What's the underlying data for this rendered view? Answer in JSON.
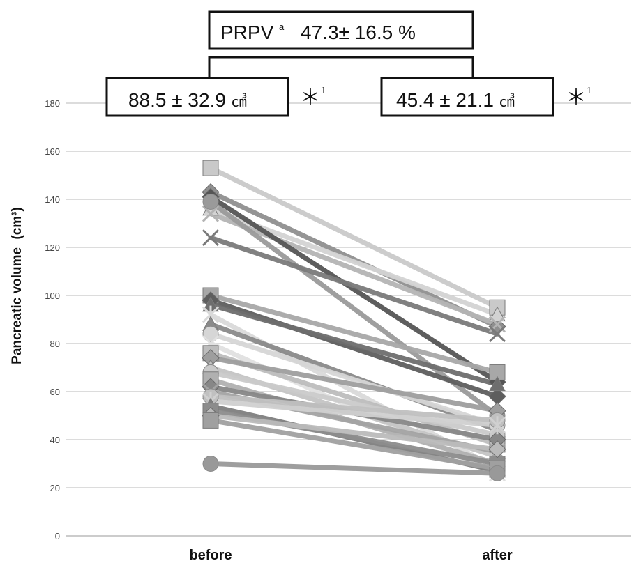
{
  "chart_data": {
    "type": "line",
    "categories": [
      "before",
      "after"
    ],
    "ylabel": "Pancreatic volume",
    "ylabel_unit": "(cm³)",
    "ylim": [
      0,
      180
    ],
    "yticks": [
      0,
      20,
      40,
      60,
      80,
      100,
      120,
      140,
      160,
      180
    ],
    "grid": true,
    "annotations": {
      "prpv": {
        "label": "PRPV",
        "superscript": "a",
        "value": "47.3± 16.5 %"
      },
      "before_box": {
        "value": "88.5 ± 32.9",
        "unit": "㎤",
        "marker": "＊",
        "superscript": "1"
      },
      "after_box": {
        "value": "45.4 ± 21.1",
        "unit": "㎤",
        "marker": "＊",
        "superscript": "1"
      }
    },
    "series": [
      {
        "values": [
          153,
          95
        ],
        "color": "#c9c9c9",
        "marker": "square"
      },
      {
        "values": [
          143,
          87
        ],
        "color": "#8f8f8f",
        "marker": "diamond"
      },
      {
        "values": [
          136,
          92
        ],
        "color": "#d3d3d3",
        "marker": "triangle"
      },
      {
        "values": [
          134,
          88
        ],
        "color": "#b4b4b4",
        "marker": "x"
      },
      {
        "values": [
          141,
          64
        ],
        "color": "#555555",
        "marker": "diamond"
      },
      {
        "values": [
          139,
          50
        ],
        "color": "#9a9a9a",
        "marker": "circle"
      },
      {
        "values": [
          124,
          84
        ],
        "color": "#7a7a7a",
        "marker": "x"
      },
      {
        "values": [
          100,
          68
        ],
        "color": "#a8a8a8",
        "marker": "square"
      },
      {
        "values": [
          98,
          58
        ],
        "color": "#5e5e5e",
        "marker": "diamond"
      },
      {
        "values": [
          96,
          63
        ],
        "color": "#6e6e6e",
        "marker": "triangle"
      },
      {
        "values": [
          92,
          28
        ],
        "color": "#d9d9d9",
        "marker": "star"
      },
      {
        "values": [
          88,
          44
        ],
        "color": "#8a8a8a",
        "marker": "triangle"
      },
      {
        "values": [
          84,
          46
        ],
        "color": "#d6d6d6",
        "marker": "circle"
      },
      {
        "values": [
          80,
          26
        ],
        "color": "#e0e0e0",
        "marker": "x"
      },
      {
        "values": [
          76,
          38
        ],
        "color": "#bdbdbd",
        "marker": "square"
      },
      {
        "values": [
          74,
          52
        ],
        "color": "#9e9e9e",
        "marker": "diamond"
      },
      {
        "values": [
          70,
          33
        ],
        "color": "#c4c4c4",
        "marker": "triangle"
      },
      {
        "values": [
          68,
          42
        ],
        "color": "#cacaca",
        "marker": "circle"
      },
      {
        "values": [
          65,
          30
        ],
        "color": "#b0b0b0",
        "marker": "square"
      },
      {
        "values": [
          62,
          40
        ],
        "color": "#878787",
        "marker": "diamond"
      },
      {
        "values": [
          60,
          35
        ],
        "color": "#a3a3a3",
        "marker": "x"
      },
      {
        "values": [
          58,
          48
        ],
        "color": "#c0c0c0",
        "marker": "circle"
      },
      {
        "values": [
          56,
          46
        ],
        "color": "#d0d0d0",
        "marker": "star"
      },
      {
        "values": [
          54,
          27
        ],
        "color": "#7e7e7e",
        "marker": "triangle"
      },
      {
        "values": [
          52,
          30
        ],
        "color": "#8c8c8c",
        "marker": "square"
      },
      {
        "values": [
          50,
          36
        ],
        "color": "#bababa",
        "marker": "diamond"
      },
      {
        "values": [
          48,
          28
        ],
        "color": "#a0a0a0",
        "marker": "square"
      },
      {
        "values": [
          30,
          26
        ],
        "color": "#999999",
        "marker": "circle"
      }
    ]
  }
}
